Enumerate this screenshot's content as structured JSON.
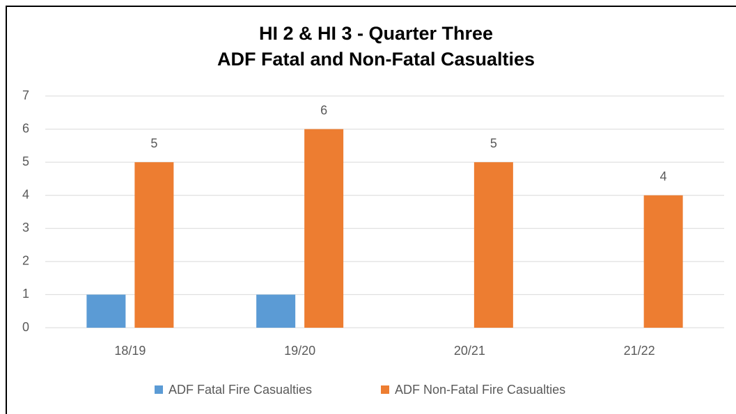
{
  "chart_data": {
    "type": "bar",
    "title": [
      "HI 2 & HI 3 - Quarter Three",
      "ADF Fatal and Non-Fatal Casualties"
    ],
    "categories": [
      "18/19",
      "19/20",
      "20/21",
      "21/22"
    ],
    "series": [
      {
        "name": "ADF Fatal Fire Casualties",
        "color": "#5b9bd5",
        "values": [
          1,
          1,
          0,
          0
        ],
        "data_labels": false
      },
      {
        "name": "ADF Non-Fatal Fire Casualties",
        "color": "#ed7d31",
        "values": [
          5,
          6,
          5,
          4
        ],
        "data_labels": true
      }
    ],
    "ylim": [
      0,
      7
    ],
    "yticks": [
      0,
      1,
      2,
      3,
      4,
      5,
      6,
      7
    ],
    "grid": true,
    "legend": "bottom"
  }
}
